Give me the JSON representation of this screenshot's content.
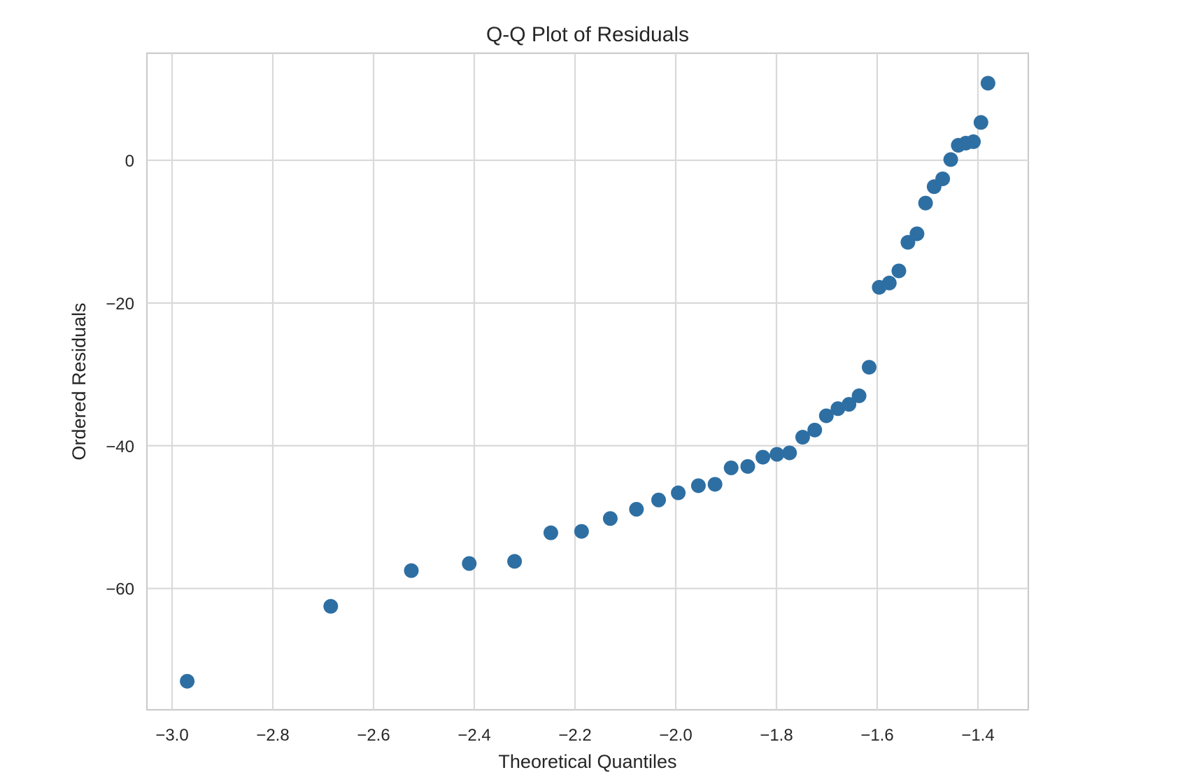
{
  "chart_data": {
    "type": "scatter",
    "title": "Q-Q Plot of Residuals",
    "xlabel": "Theoretical Quantiles",
    "ylabel": "Ordered Residuals",
    "xlim": [
      -3.05,
      -1.3
    ],
    "ylim": [
      -77,
      15
    ],
    "xticks": [
      -3.0,
      -2.8,
      -2.6,
      -2.4,
      -2.2,
      -2.0,
      -1.8,
      -1.6,
      -1.4
    ],
    "xtick_labels": [
      "−3.0",
      "−2.8",
      "−2.6",
      "−2.4",
      "−2.2",
      "−2.0",
      "−1.8",
      "−1.6",
      "−1.4"
    ],
    "yticks": [
      0,
      -20,
      -40,
      -60
    ],
    "ytick_labels": [
      "0",
      "−20",
      "−40",
      "−60"
    ],
    "grid": true,
    "point_color": "#2e6fa3",
    "series": [
      {
        "x": [
          -2.97,
          -2.685,
          -2.525,
          -2.41,
          -2.32,
          -2.248,
          -2.187,
          -2.13,
          -2.078,
          -2.034,
          -1.995,
          -1.955,
          -1.922,
          -1.89,
          -1.857,
          -1.827,
          -1.799,
          -1.774,
          -1.748,
          -1.724,
          -1.701,
          -1.678,
          -1.656,
          -1.636,
          -1.616,
          -1.596,
          -1.576,
          -1.557,
          -1.539,
          -1.521,
          -1.504,
          -1.487,
          -1.47,
          -1.454,
          -1.439,
          -1.424,
          -1.409,
          -1.394,
          -1.38
        ],
        "y": [
          -73,
          -62.5,
          -57.5,
          -56.5,
          -56.2,
          -52.2,
          -52.0,
          -50.2,
          -48.9,
          -47.6,
          -46.6,
          -45.6,
          -45.4,
          -43.1,
          -42.9,
          -41.6,
          -41.2,
          -41.0,
          -38.8,
          -37.8,
          -35.8,
          -34.8,
          -34.2,
          -33.0,
          -29.0,
          -17.8,
          -17.2,
          -15.5,
          -11.5,
          -10.3,
          -6.0,
          -3.7,
          -2.6,
          0.1,
          2.1,
          2.4,
          2.6,
          5.3,
          10.8
        ]
      }
    ]
  }
}
